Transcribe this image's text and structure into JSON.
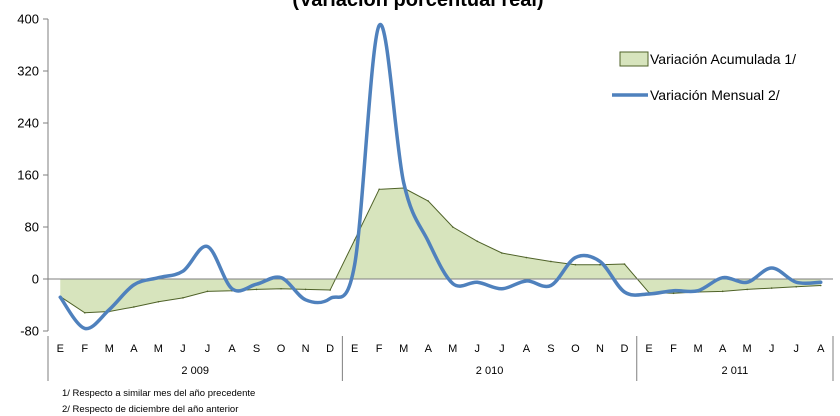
{
  "chart_data": {
    "type": "line",
    "title": "(Variación porcentual real)",
    "ylim": [
      -80,
      400
    ],
    "yticks": [
      400,
      320,
      240,
      160,
      80,
      0,
      -80
    ],
    "categories": [
      "E",
      "F",
      "M",
      "A",
      "M",
      "J",
      "J",
      "A",
      "S",
      "O",
      "N",
      "D",
      "E",
      "F",
      "M",
      "A",
      "M",
      "J",
      "J",
      "A",
      "S",
      "O",
      "N",
      "D",
      "E",
      "F",
      "M",
      "A",
      "M",
      "J",
      "J",
      "A"
    ],
    "years": [
      {
        "label": "2 009",
        "start": 0,
        "end": 11
      },
      {
        "label": "2 010",
        "start": 12,
        "end": 23
      },
      {
        "label": "2 011",
        "start": 24,
        "end": 31
      }
    ],
    "series": [
      {
        "name": "Variación Acumulada 1/",
        "type": "area",
        "color": "#d7e4bd",
        "edge": "#4f6228",
        "values": [
          -27,
          -52,
          -50,
          -43,
          -35,
          -29,
          -19,
          -18,
          -16,
          -15,
          -16,
          -17,
          60,
          138,
          140,
          120,
          80,
          58,
          40,
          33,
          27,
          22,
          22,
          23,
          -21,
          -22,
          -20,
          -19,
          -16,
          -14,
          -12,
          -10
        ]
      },
      {
        "name": "Variación Mensual 2/",
        "type": "line",
        "color": "#4f81bd",
        "values": [
          -28,
          -76,
          -47,
          -9,
          2,
          12,
          50,
          -15,
          -8,
          2,
          -32,
          -30,
          22,
          390,
          148,
          58,
          -7,
          -5,
          -15,
          -3,
          -10,
          33,
          27,
          -20,
          -23,
          -18,
          -18,
          2,
          -5,
          17,
          -5,
          -5
        ]
      }
    ],
    "legend_position": "top-right",
    "grid": false
  },
  "footnotes": [
    "1/ Respecto a similar mes del año precedente",
    "2/ Respecto de diciembre del año anterior"
  ]
}
